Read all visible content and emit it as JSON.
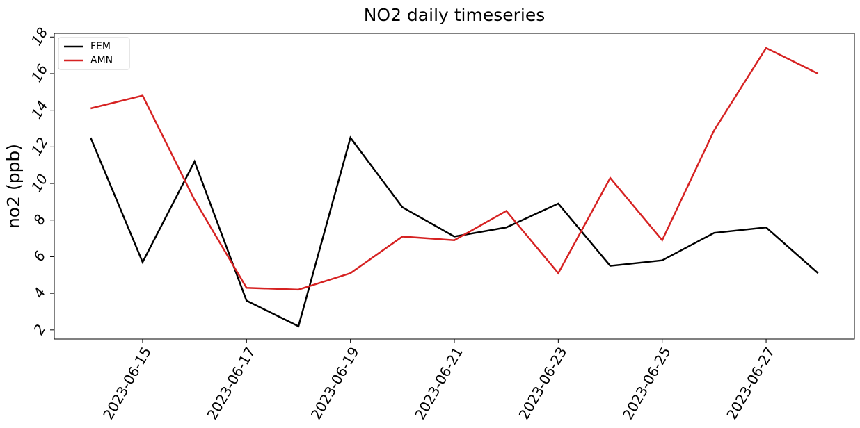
{
  "chart_data": {
    "type": "line",
    "title": "NO2 daily timeseries",
    "y_label": "no2 (ppb)",
    "x": [
      "2023-06-14",
      "2023-06-15",
      "2023-06-16",
      "2023-06-17",
      "2023-06-18",
      "2023-06-19",
      "2023-06-20",
      "2023-06-21",
      "2023-06-22",
      "2023-06-23",
      "2023-06-24",
      "2023-06-25",
      "2023-06-26",
      "2023-06-27",
      "2023-06-28"
    ],
    "series": [
      {
        "name": "FEM",
        "color": "#000000",
        "values": [
          12.5,
          5.7,
          11.2,
          3.6,
          2.2,
          12.5,
          8.7,
          7.1,
          7.6,
          8.9,
          5.5,
          5.8,
          7.3,
          7.6,
          5.1
        ]
      },
      {
        "name": "AMN",
        "color": "#d62222",
        "values": [
          14.1,
          14.8,
          9.1,
          4.3,
          4.2,
          5.1,
          7.1,
          6.9,
          8.5,
          5.1,
          10.3,
          6.9,
          12.9,
          17.4,
          16.0
        ]
      }
    ],
    "xticks": [
      "2023-06-15",
      "2023-06-17",
      "2023-06-19",
      "2023-06-21",
      "2023-06-23",
      "2023-06-25",
      "2023-06-27"
    ],
    "ylim": [
      1.5,
      18.2
    ],
    "yticks": [
      2,
      4,
      6,
      8,
      10,
      12,
      14,
      16,
      18
    ],
    "legend": "upper left"
  }
}
